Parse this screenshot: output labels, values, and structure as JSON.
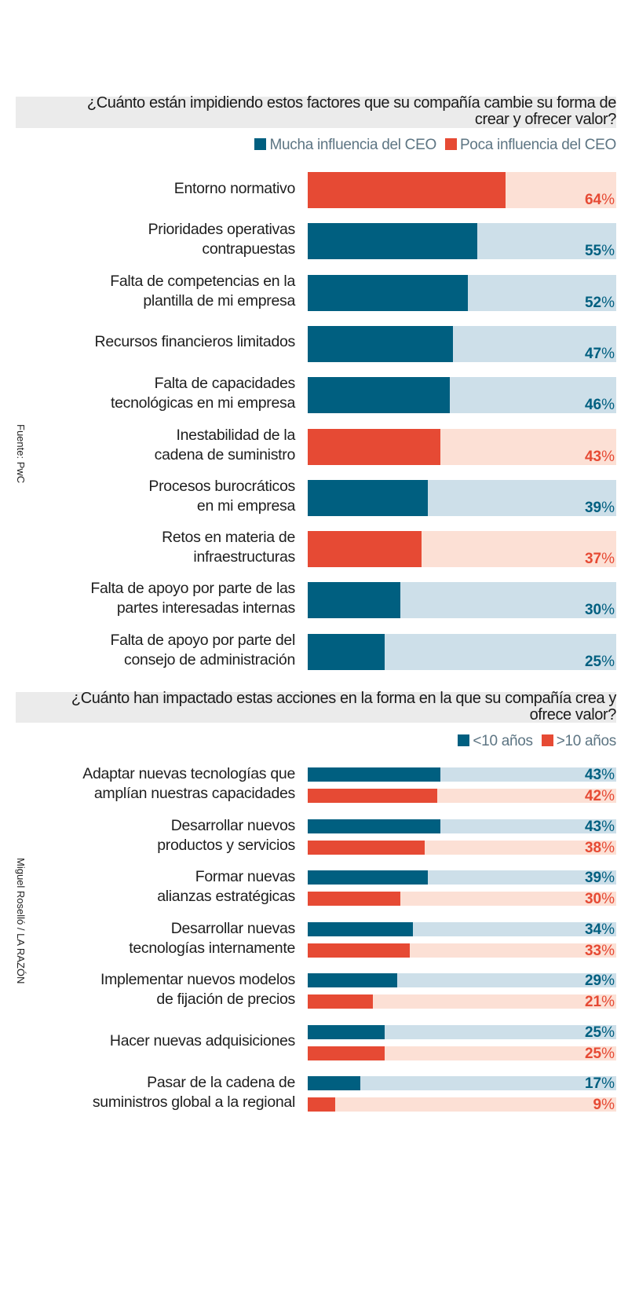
{
  "colors": {
    "blue": "#005f80",
    "blue_light": "#cddfe9",
    "red": "#e64a34",
    "red_light": "#fce0d5"
  },
  "side": {
    "source": "Fuente: PwC",
    "credit": "Miguel Roselló / LA RAZÓN"
  },
  "chart_data": [
    {
      "type": "bar",
      "orientation": "horizontal",
      "title": "¿Cuánto están impidiendo estos factores que su compañía cambie su forma de crear y ofrecer valor?",
      "legend": [
        {
          "name": "Mucha influencia del CEO",
          "color": "#005f80"
        },
        {
          "name": "Poca influencia del CEO",
          "color": "#e64a34"
        }
      ],
      "legend_position": "top-right",
      "xlim": [
        0,
        100
      ],
      "unit": "%",
      "categories": [
        "Entorno normativo",
        "Prioridades operativas contrapuestas",
        "Falta de competencias en la plantilla de mi empresa",
        "Recursos financieros limitados",
        "Falta de capacidades tecnológicas en mi empresa",
        "Inestabilidad de la cadena de suministro",
        "Procesos burocráticos en mi empresa",
        "Retos en materia de infraestructuras",
        "Falta de apoyo por parte de las partes interesadas internas",
        "Falta de apoyo por parte del consejo de administración"
      ],
      "label_lines": [
        [
          "Entorno normativo"
        ],
        [
          "Prioridades operativas",
          "contrapuestas"
        ],
        [
          "Falta de competencias en la",
          "plantilla de mi empresa"
        ],
        [
          "Recursos financieros limitados"
        ],
        [
          "Falta de capacidades",
          "tecnológicas en mi empresa"
        ],
        [
          "Inestabilidad de la",
          "cadena de suministro"
        ],
        [
          "Procesos burocráticos",
          "en mi empresa"
        ],
        [
          "Retos en materia de",
          "infraestructuras"
        ],
        [
          "Falta de apoyo por parte de las",
          "partes interesadas internas"
        ],
        [
          "Falta de apoyo por parte del",
          "consejo de administración"
        ]
      ],
      "values": [
        64,
        55,
        52,
        47,
        46,
        43,
        39,
        37,
        30,
        25
      ],
      "group": [
        "Poca influencia del CEO",
        "Mucha influencia del CEO",
        "Mucha influencia del CEO",
        "Mucha influencia del CEO",
        "Mucha influencia del CEO",
        "Poca influencia del CEO",
        "Mucha influencia del CEO",
        "Poca influencia del CEO",
        "Mucha influencia del CEO",
        "Mucha influencia del CEO"
      ]
    },
    {
      "type": "bar",
      "orientation": "horizontal",
      "title": "¿Cuánto han impactado estas acciones en la forma en la que su compañía crea y ofrece valor?",
      "legend_position": "top-right",
      "xlim": [
        0,
        100
      ],
      "unit": "%",
      "categories": [
        "Adaptar nuevas tecnologías que amplían nuestras capacidades",
        "Desarrollar nuevos productos y servicios",
        "Formar nuevas alianzas estratégicas",
        "Desarrollar nuevas tecnologías internamente",
        "Implementar nuevos modelos de fijación de precios",
        "Hacer nuevas adquisiciones",
        "Pasar de la cadena de suministros global a la regional"
      ],
      "label_lines": [
        [
          "Adaptar nuevas tecnologías que",
          "amplían nuestras capacidades"
        ],
        [
          "Desarrollar nuevos",
          "productos y servicios"
        ],
        [
          "Formar nuevas",
          "alianzas estratégicas"
        ],
        [
          "Desarrollar nuevas",
          "tecnologías internamente"
        ],
        [
          "Implementar nuevos modelos",
          "de fijación de precios"
        ],
        [
          "Hacer nuevas adquisiciones"
        ],
        [
          "Pasar de la cadena de",
          "suministros global a la regional"
        ]
      ],
      "series": [
        {
          "name": "<10 años",
          "color": "#005f80",
          "values": [
            43,
            43,
            39,
            34,
            29,
            25,
            17
          ]
        },
        {
          "name": ">10 años",
          "color": "#e64a34",
          "values": [
            42,
            38,
            30,
            33,
            21,
            25,
            9
          ]
        }
      ]
    }
  ]
}
